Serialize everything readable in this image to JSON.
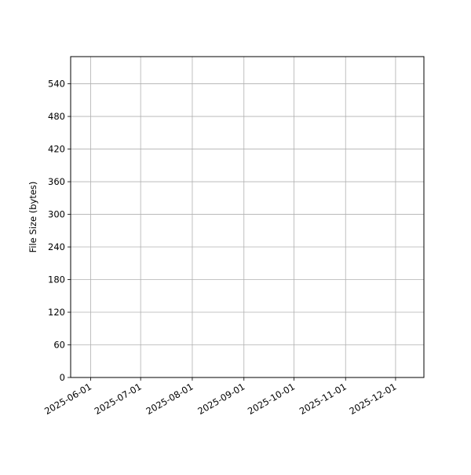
{
  "chart_data": {
    "type": "line",
    "title": "",
    "xlabel": "",
    "ylabel": "File Size (bytes)",
    "x_type": "date",
    "xlim": [
      "2025-05-20",
      "2025-12-18"
    ],
    "ylim": [
      0,
      590
    ],
    "x_ticks": [
      "2025-06-01",
      "2025-07-01",
      "2025-08-01",
      "2025-09-01",
      "2025-10-01",
      "2025-11-01",
      "2025-12-01"
    ],
    "y_ticks": [
      0,
      60,
      120,
      180,
      240,
      300,
      360,
      420,
      480,
      540
    ],
    "grid": true,
    "series": [],
    "colors": {
      "grid": "#b0b0b0",
      "axes": "#000000"
    }
  }
}
